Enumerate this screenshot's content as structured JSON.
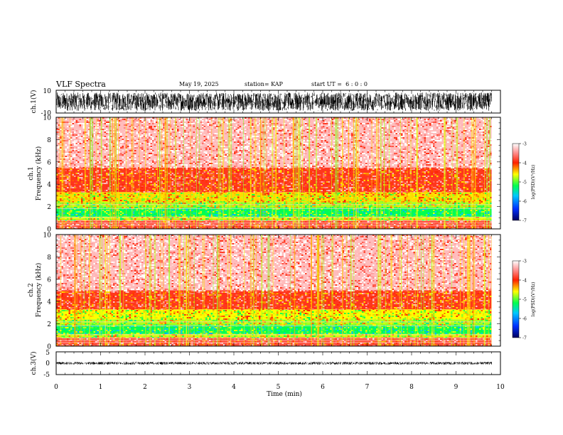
{
  "header": {
    "title": "VLF Spectra",
    "date": "May 19, 2025",
    "station": "station= KAP",
    "start_ut": "start UT =  6 : 0 : 0"
  },
  "chart_data": [
    {
      "type": "line",
      "panel": "ch1-waveform",
      "ylabel": "ch.1(V)",
      "ylim": [
        -10,
        10
      ],
      "yticks": [
        "10",
        "-10"
      ],
      "xlim": [
        0,
        10
      ],
      "series_description_values": {
        "mean": 0,
        "amplitude_range": [
          -8,
          8
        ]
      }
    },
    {
      "type": "heatmap",
      "panel": "ch1-spectrogram",
      "ylabel": "ch.1\nFrequency (kHz)",
      "ylabel_line1": "ch.1",
      "ylabel_line2": "Frequency (kHz)",
      "ylim": [
        0,
        10
      ],
      "yticks": [
        "0",
        "2",
        "4",
        "6",
        "8",
        "10"
      ],
      "xlim": [
        0,
        9.8
      ],
      "colorbar": {
        "label": "log(PSD)(V²/Hz)",
        "range": [
          -7,
          -3
        ],
        "ticks": [
          "-3",
          "-4",
          "-5",
          "-6",
          "-7"
        ]
      },
      "bands_log_psd": [
        {
          "f_range": [
            0,
            0.8
          ],
          "level": -3.8
        },
        {
          "f_range": [
            0.8,
            1.1
          ],
          "level": -4.7
        },
        {
          "f_range": [
            1.1,
            1.9
          ],
          "level": -5.2
        },
        {
          "f_range": [
            1.9,
            2.4
          ],
          "level": -4.8
        },
        {
          "f_range": [
            2.4,
            3.3
          ],
          "level": -4.5
        },
        {
          "f_range": [
            3.3,
            5.5
          ],
          "level": -3.9
        },
        {
          "f_range": [
            5.5,
            10
          ],
          "level": -3.3
        }
      ]
    },
    {
      "type": "heatmap",
      "panel": "ch2-spectrogram",
      "ylabel": "ch.2\nFrequency (kHz)",
      "ylabel_line1": "ch.2",
      "ylabel_line2": "Frequency (kHz)",
      "ylim": [
        0,
        10
      ],
      "yticks": [
        "0",
        "2",
        "4",
        "6",
        "8",
        "10"
      ],
      "xlim": [
        0,
        9.8
      ],
      "colorbar": {
        "label": "log(PSD)(V²/Hz)",
        "range": [
          -7,
          -3
        ],
        "ticks": [
          "-3",
          "-4",
          "-5",
          "-6",
          "-7"
        ]
      },
      "bands_log_psd": [
        {
          "f_range": [
            0,
            0.8
          ],
          "level": -3.8
        },
        {
          "f_range": [
            0.8,
            1.1
          ],
          "level": -4.7
        },
        {
          "f_range": [
            1.1,
            1.9
          ],
          "level": -5.2
        },
        {
          "f_range": [
            1.9,
            2.4
          ],
          "level": -4.8
        },
        {
          "f_range": [
            2.4,
            3.3
          ],
          "level": -4.6
        },
        {
          "f_range": [
            3.3,
            5.0
          ],
          "level": -3.9
        },
        {
          "f_range": [
            5.0,
            10
          ],
          "level": -3.3
        }
      ]
    },
    {
      "type": "line",
      "panel": "ch3-waveform",
      "ylabel": "ch.3(V)",
      "ylim": [
        -5,
        5
      ],
      "yticks": [
        "5",
        "0",
        "-5"
      ],
      "xlim": [
        0,
        10
      ],
      "series_description_values": {
        "mean": 0,
        "amplitude_range": [
          -0.6,
          0.6
        ]
      }
    }
  ],
  "xaxis": {
    "label": "Time (min)",
    "ticks": [
      "0",
      "1",
      "2",
      "3",
      "4",
      "5",
      "6",
      "7",
      "8",
      "9",
      "10"
    ],
    "range": [
      0,
      10
    ]
  },
  "colors": {
    "colormap": [
      "#000080",
      "#0040ff",
      "#00d0ff",
      "#00ff40",
      "#ffff00",
      "#ff0000",
      "#ffffff"
    ]
  }
}
